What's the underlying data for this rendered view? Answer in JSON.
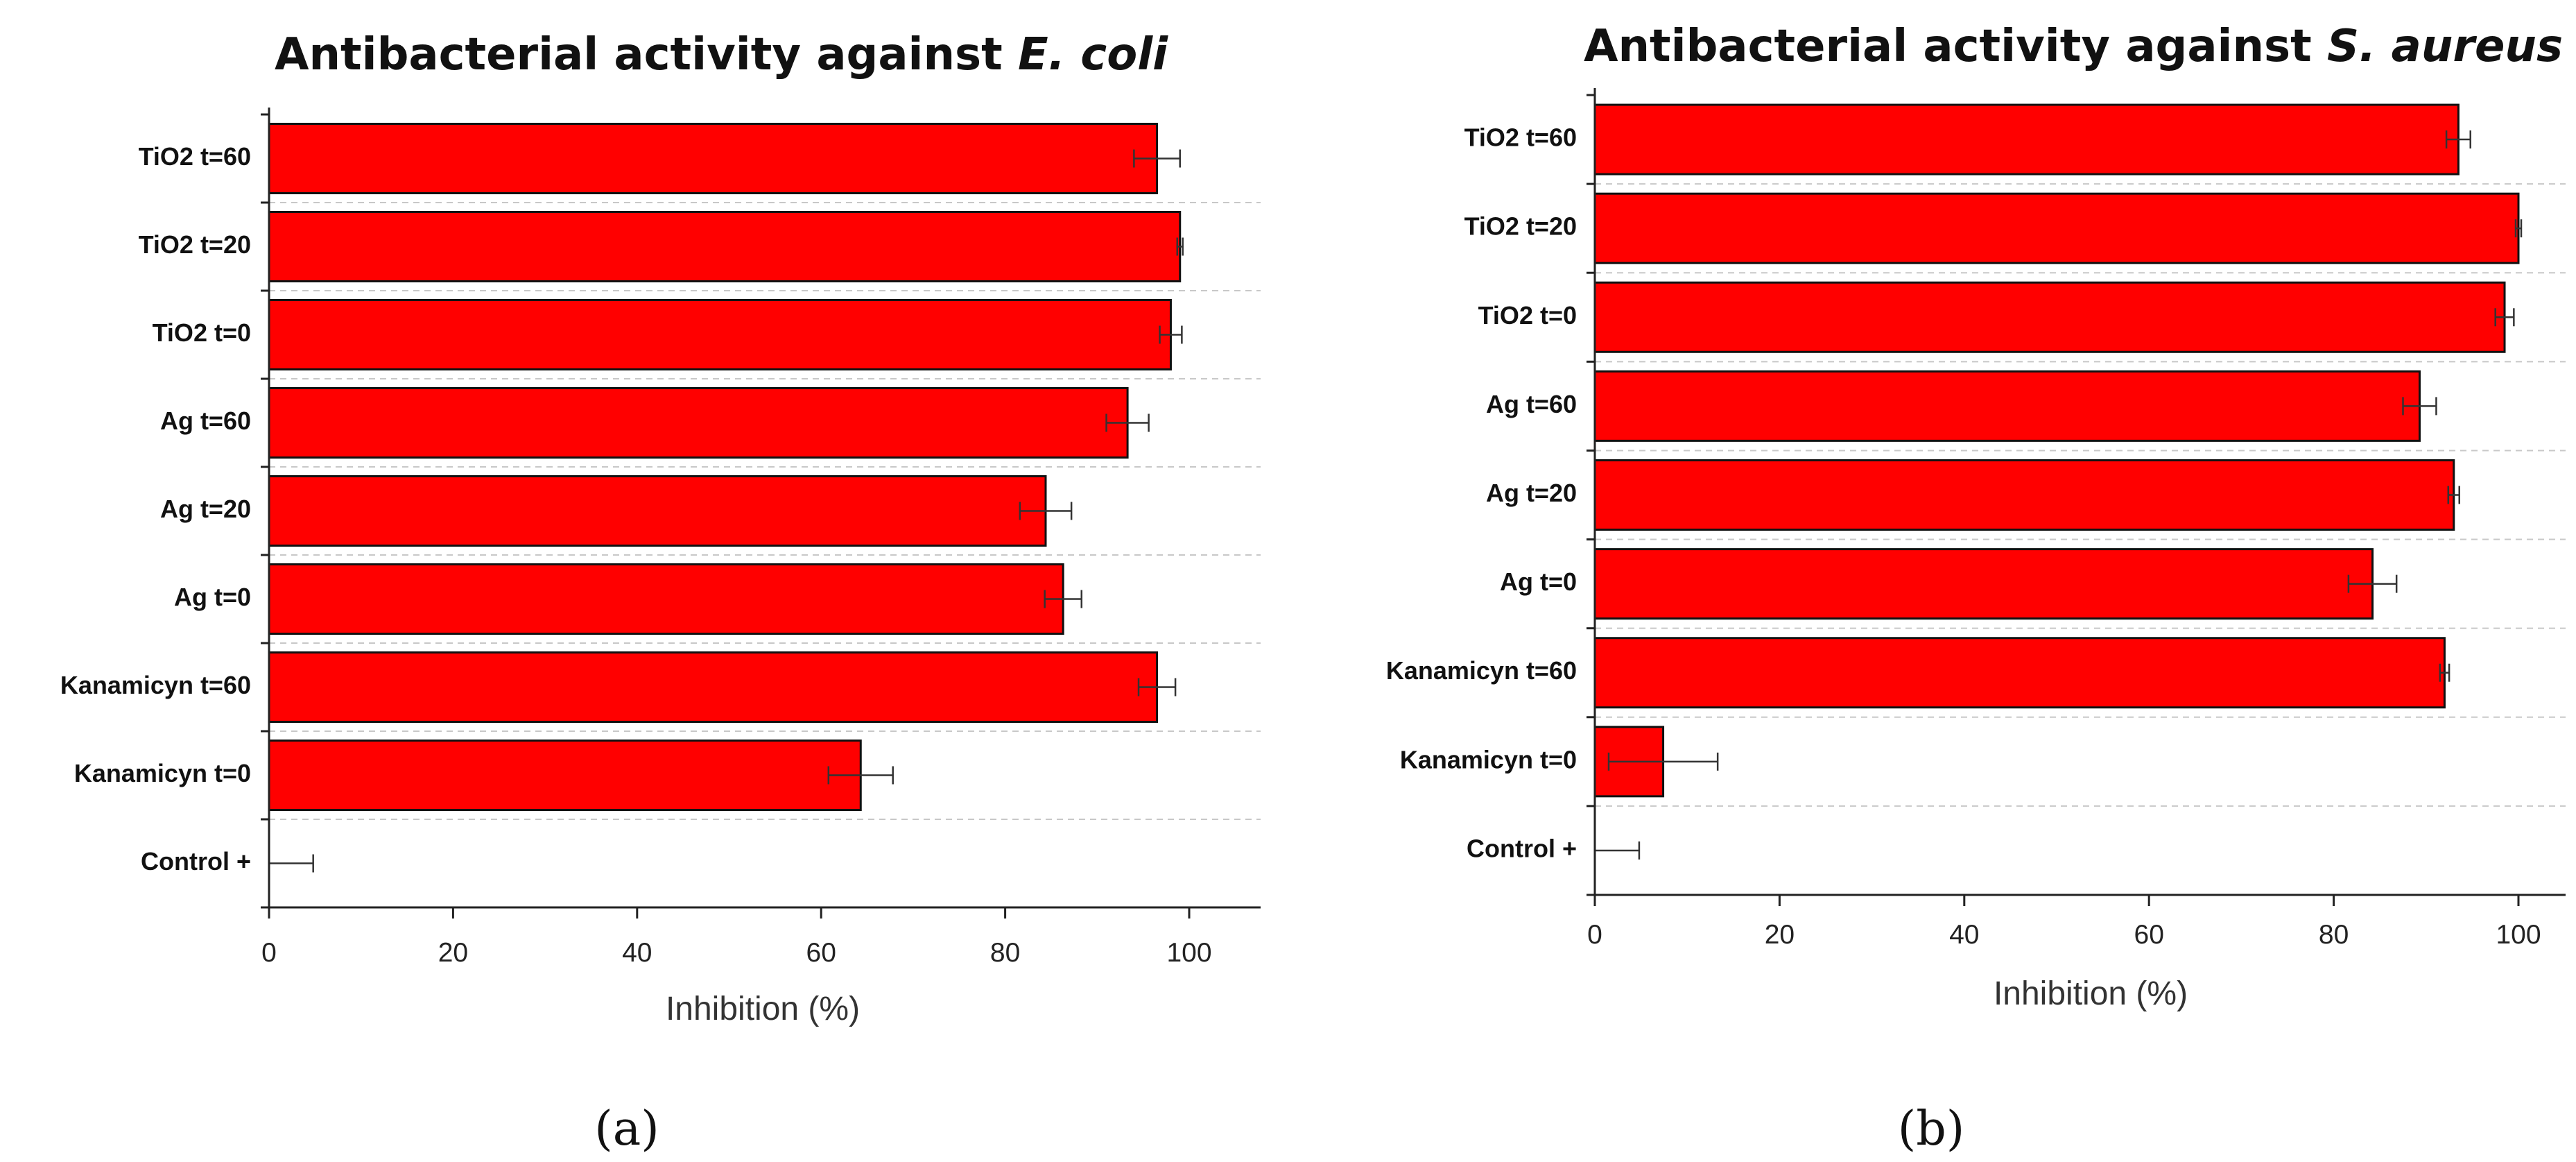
{
  "colors": {
    "bar_fill": "#ff0000",
    "bar_stroke": "#111111",
    "grid": "#c8c8c8",
    "axis": "#222222"
  },
  "chart_data": [
    {
      "type": "bar",
      "orientation": "horizontal",
      "panel_label": "(a)",
      "title_prefix": "Antibacterial activity against ",
      "title_organism": "E. coli",
      "xlabel": "Inhibition (%)",
      "xlim": [
        0,
        107
      ],
      "xticks": [
        0,
        20,
        40,
        60,
        80,
        100
      ],
      "grid": "horizontal dashed",
      "categories": [
        "TiO2 t=60",
        "TiO2 t=20",
        "TiO2 t=0",
        "Ag t=60",
        "Ag t=20",
        "Ag t=0",
        "Kanamicyn t=60",
        "Kanamicyn t=0",
        "Control +"
      ],
      "values": [
        96.5,
        99,
        98,
        93.3,
        84.4,
        86.3,
        96.5,
        64.3,
        0
      ],
      "errors": [
        2.5,
        0.3,
        1.2,
        2.3,
        2.8,
        2.0,
        2.0,
        3.5,
        4.8
      ]
    },
    {
      "type": "bar",
      "orientation": "horizontal",
      "panel_label": "(b)",
      "title_prefix": "Antibacterial activity against ",
      "title_organism": "S. aureus",
      "xlabel": "Inhibition (%)",
      "xlim": [
        0,
        103
      ],
      "xticks": [
        0,
        20,
        40,
        60,
        80,
        100
      ],
      "grid": "horizontal dashed",
      "categories": [
        "TiO2 t=60",
        "TiO2 t=20",
        "TiO2 t=0",
        "Ag t=60",
        "Ag t=20",
        "Ag t=0",
        "Kanamicyn t=60",
        "Kanamicyn t=0",
        "Control +"
      ],
      "values": [
        93.5,
        100,
        98.5,
        89.3,
        93,
        84.2,
        92,
        7.4,
        0
      ],
      "errors": [
        1.3,
        0.3,
        1.0,
        1.8,
        0.6,
        2.6,
        0.5,
        5.9,
        4.8
      ]
    }
  ]
}
